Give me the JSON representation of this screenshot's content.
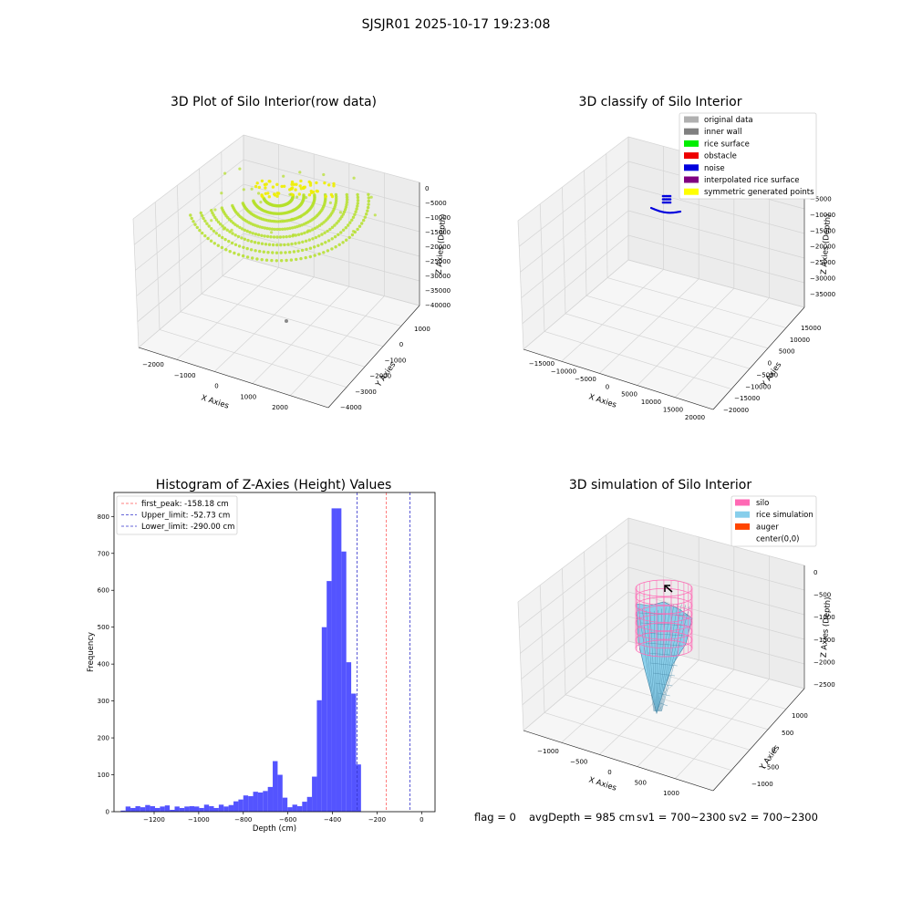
{
  "figure": {
    "suptitle": "SJSJR01 2025-10-17 19:23:08",
    "footer": {
      "flag": "flag = 0",
      "avg_depth": "avgDepth = 985 cm",
      "sv1": "sv1 = 700~2300",
      "sv2": "sv2 = 700~2300"
    }
  },
  "colors": {
    "rice_point": "#b5e02a",
    "yellow": "#eeee00",
    "hist_bar": "#4b4bff",
    "peak_line": "#ff5555",
    "limit_line": "#3333cc",
    "silo": "#ff69b4",
    "rice_sim": "#87ceeb",
    "auger": "#ff4500"
  },
  "chart_data": [
    {
      "type": "scatter",
      "title": "3D Plot of Silo Interior(row data)",
      "xlabel": "X Axies",
      "ylabel": "Y Axies",
      "zlabel": "Z Axies (Depth)",
      "x_ticks": [
        "−2000",
        "−1000",
        "0",
        "1000",
        "2000"
      ],
      "y_ticks": [
        "−4000",
        "−3000",
        "−2000",
        "−1000",
        "0",
        "1000"
      ],
      "z_ticks": [
        "0",
        "−5000",
        "−10000",
        "−15000",
        "−20000",
        "−25000",
        "−30000",
        "−35000",
        "−40000"
      ],
      "grid": true
    },
    {
      "type": "scatter",
      "title": "3D classify of Silo Interior",
      "xlabel": "X Axies",
      "ylabel": "Y Axies",
      "zlabel": "Z Axies (Depth)",
      "x_ticks": [
        "−15000",
        "−10000",
        "−5000",
        "0",
        "5000",
        "10000",
        "15000",
        "20000"
      ],
      "y_ticks": [
        "−20000",
        "−15000",
        "−10000",
        "−5000",
        "0",
        "5000",
        "10000",
        "15000"
      ],
      "z_ticks": [
        "0",
        "−5000",
        "−10000",
        "−15000",
        "−20000",
        "−25000",
        "−30000",
        "−35000"
      ],
      "legend": [
        {
          "label": "original data",
          "color": "#b0b0b0"
        },
        {
          "label": "inner wall",
          "color": "#808080"
        },
        {
          "label": "rice surface",
          "color": "#00ee00"
        },
        {
          "label": "obstacle",
          "color": "#ee0000"
        },
        {
          "label": "noise",
          "color": "#0000dd"
        },
        {
          "label": "interpolated rice surface",
          "color": "#800080"
        },
        {
          "label": "symmetric generated points",
          "color": "#ffff00"
        }
      ],
      "legend_position": "upper-right",
      "grid": true
    },
    {
      "type": "bar",
      "title": "Histogram of Z-Axies (Height) Values",
      "xlabel": "Depth (cm)",
      "ylabel": "Frequency",
      "xlim": [
        -1380,
        60
      ],
      "ylim": [
        0,
        865
      ],
      "x_ticks": [
        -1200,
        -1000,
        -800,
        -600,
        -400,
        -200,
        0
      ],
      "y_ticks": [
        0,
        100,
        200,
        300,
        400,
        500,
        600,
        700,
        800
      ],
      "bin_start": -1350,
      "bin_width": 22,
      "values": [
        3,
        14,
        10,
        15,
        12,
        18,
        15,
        10,
        14,
        17,
        5,
        14,
        10,
        14,
        15,
        14,
        10,
        19,
        15,
        10,
        19,
        14,
        18,
        28,
        33,
        44,
        42,
        54,
        52,
        56,
        67,
        137,
        100,
        38,
        12,
        19,
        15,
        27,
        40,
        95,
        302,
        500,
        625,
        822,
        822,
        705,
        405,
        320,
        128
      ],
      "vlines": [
        {
          "label": "first_peak: -158.18 cm",
          "x": -158.18,
          "kind": "peak"
        },
        {
          "label": "Upper_limit: -52.73 cm",
          "x": -52.73,
          "kind": "limit"
        },
        {
          "label": "Lower_limit: -290.00 cm",
          "x": -290.0,
          "kind": "limit"
        }
      ],
      "legend_position": "upper-left"
    },
    {
      "type": "area",
      "title": "3D simulation of Silo Interior",
      "xlabel": "X Axies",
      "ylabel": "Y Axies",
      "zlabel": "Z Axies (Depth)",
      "x_ticks": [
        "−1000",
        "−500",
        "0",
        "500",
        "1000"
      ],
      "y_ticks": [
        "−1000",
        "−500",
        "0",
        "500",
        "1000"
      ],
      "z_ticks": [
        "0",
        "−500",
        "−1000",
        "−1500",
        "−2000",
        "−2500"
      ],
      "legend": [
        {
          "label": "silo",
          "color": "#ff69b4"
        },
        {
          "label": "rice simulation",
          "color": "#87ceeb"
        },
        {
          "label": "auger",
          "color": "#ff4500"
        },
        {
          "label": "center(0,0)",
          "color": ""
        }
      ],
      "legend_position": "upper-right",
      "grid": true
    }
  ]
}
